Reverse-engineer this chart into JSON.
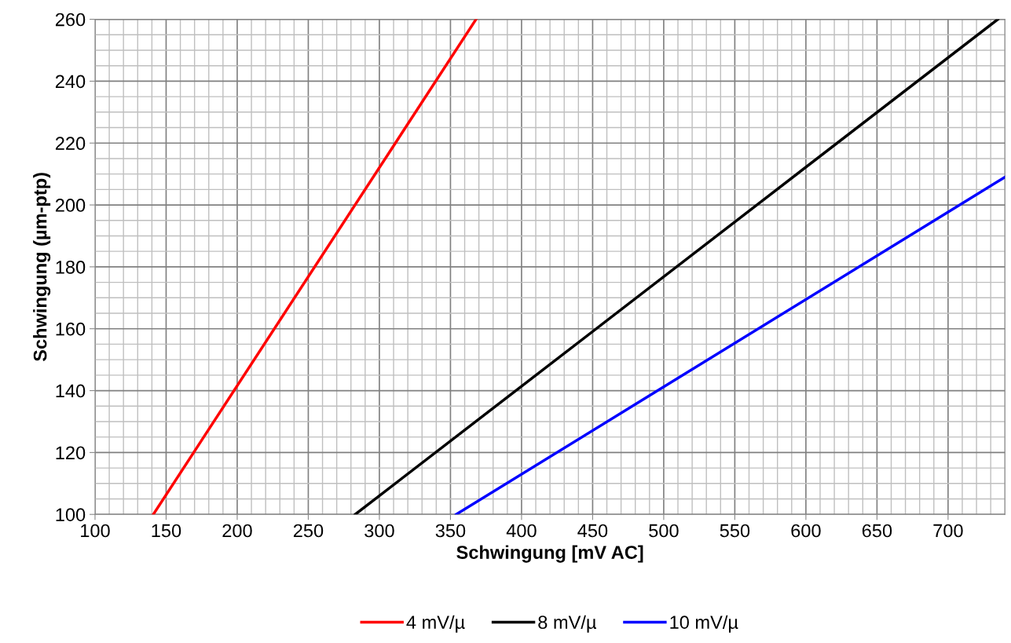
{
  "chart_data": {
    "type": "line",
    "xlabel": "Schwingung [mV AC]",
    "ylabel": "Schwingung (µm-ptp)",
    "series": [
      {
        "name": "4 mV/µ",
        "color": "#ff0000",
        "x": [
          141,
          368
        ],
        "values": [
          100,
          260
        ]
      },
      {
        "name": "8 mV/µ",
        "color": "#000000",
        "x": [
          283,
          735
        ],
        "values": [
          100,
          260
        ]
      },
      {
        "name": "10 mV/µ",
        "color": "#0000ff",
        "x": [
          354,
          740
        ],
        "values": [
          100,
          209
        ]
      }
    ],
    "xlim": [
      100,
      740
    ],
    "ylim": [
      100,
      260
    ],
    "xticks": [
      100,
      150,
      200,
      250,
      300,
      350,
      400,
      450,
      500,
      550,
      600,
      650,
      700
    ],
    "yticks": [
      100,
      120,
      140,
      160,
      180,
      200,
      220,
      240,
      260
    ],
    "grid": true,
    "legend": "bottom",
    "marker": "none",
    "line_style": "solid"
  }
}
